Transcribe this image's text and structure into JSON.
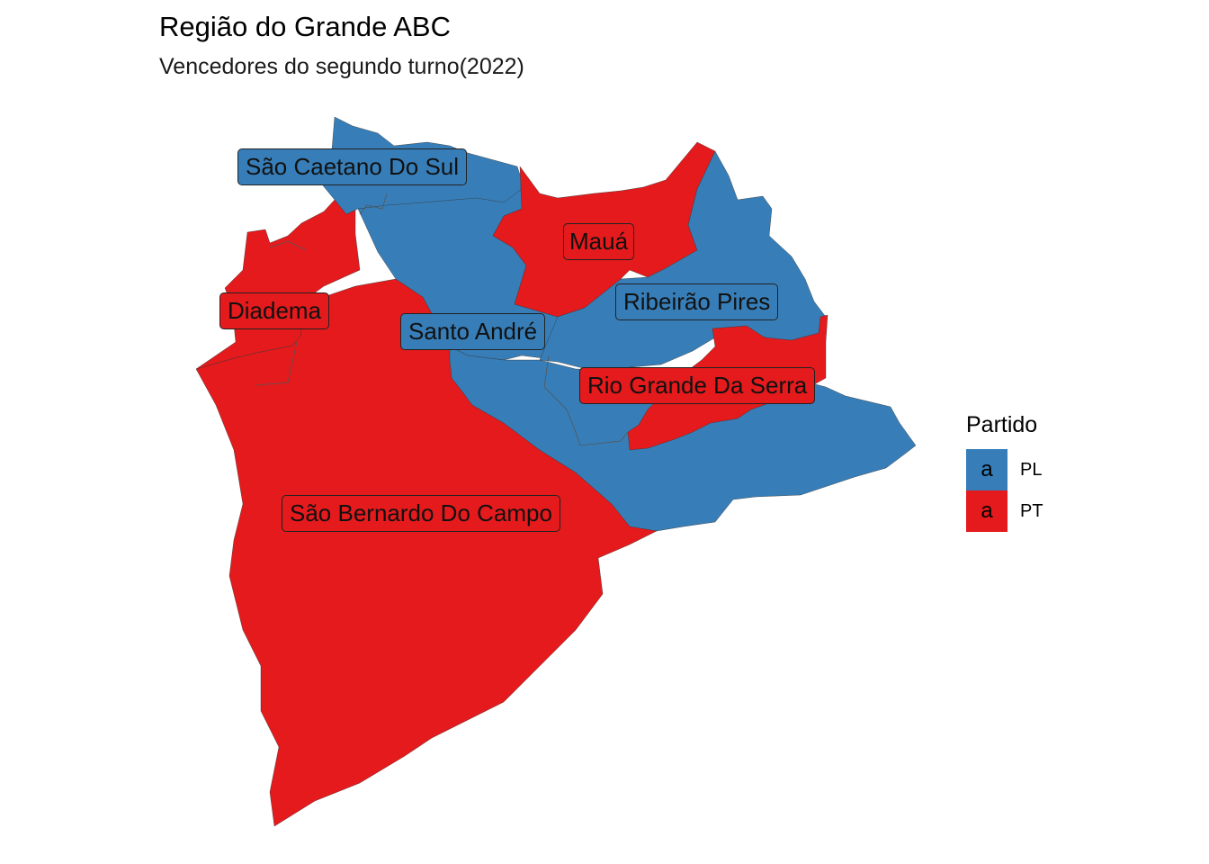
{
  "title": "Região do Grande ABC",
  "subtitle": "Vencedores do segundo turno(2022)",
  "colors": {
    "PL": "#377EB8",
    "PT": "#E41A1C"
  },
  "legend": {
    "title": "Partido",
    "items": [
      {
        "key": "PL",
        "glyph": "a",
        "label": "PL"
      },
      {
        "key": "PT",
        "glyph": "a",
        "label": "PT"
      }
    ]
  },
  "municipalities": [
    {
      "name": "São Caetano Do Sul",
      "winner": "PL"
    },
    {
      "name": "Mauá",
      "winner": "PT"
    },
    {
      "name": "Diadema",
      "winner": "PT"
    },
    {
      "name": "Ribeirão Pires",
      "winner": "PL"
    },
    {
      "name": "Santo André",
      "winner": "PL"
    },
    {
      "name": "Rio Grande Da Serra",
      "winner": "PT"
    },
    {
      "name": "São Bernardo Do Campo",
      "winner": "PT"
    }
  ]
}
